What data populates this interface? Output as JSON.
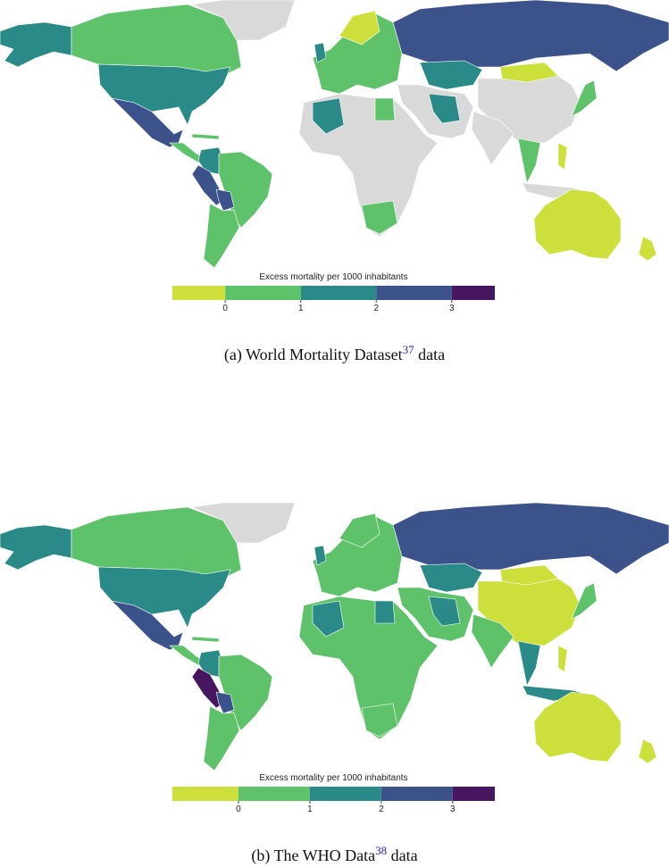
{
  "panels": [
    {
      "legend": {
        "title": "Excess mortality per 1000 inhabitants",
        "breaks": [
          -0.7,
          0,
          1,
          2,
          3,
          3.57
        ],
        "colors": [
          "#cddf3a",
          "#5ec26a",
          "#2a8a87",
          "#3b528b",
          "#46175e"
        ],
        "ticks": [
          0,
          1,
          2,
          3
        ]
      },
      "caption": {
        "text": "(a) World Mortality Dataset",
        "ref": "37",
        "suffix": "data"
      }
    },
    {
      "legend": {
        "title": "Excess mortality per 1000 inhabitants",
        "breaks": [
          -0.925,
          0,
          1,
          2,
          3,
          3.59
        ],
        "colors": [
          "#cddf3a",
          "#5ec26a",
          "#2a8a87",
          "#3b528b",
          "#46175e"
        ],
        "ticks": [
          0,
          1,
          2,
          3
        ]
      },
      "caption": {
        "text": "(b) The WHO Data",
        "ref": "38",
        "suffix": "data"
      }
    }
  ]
}
